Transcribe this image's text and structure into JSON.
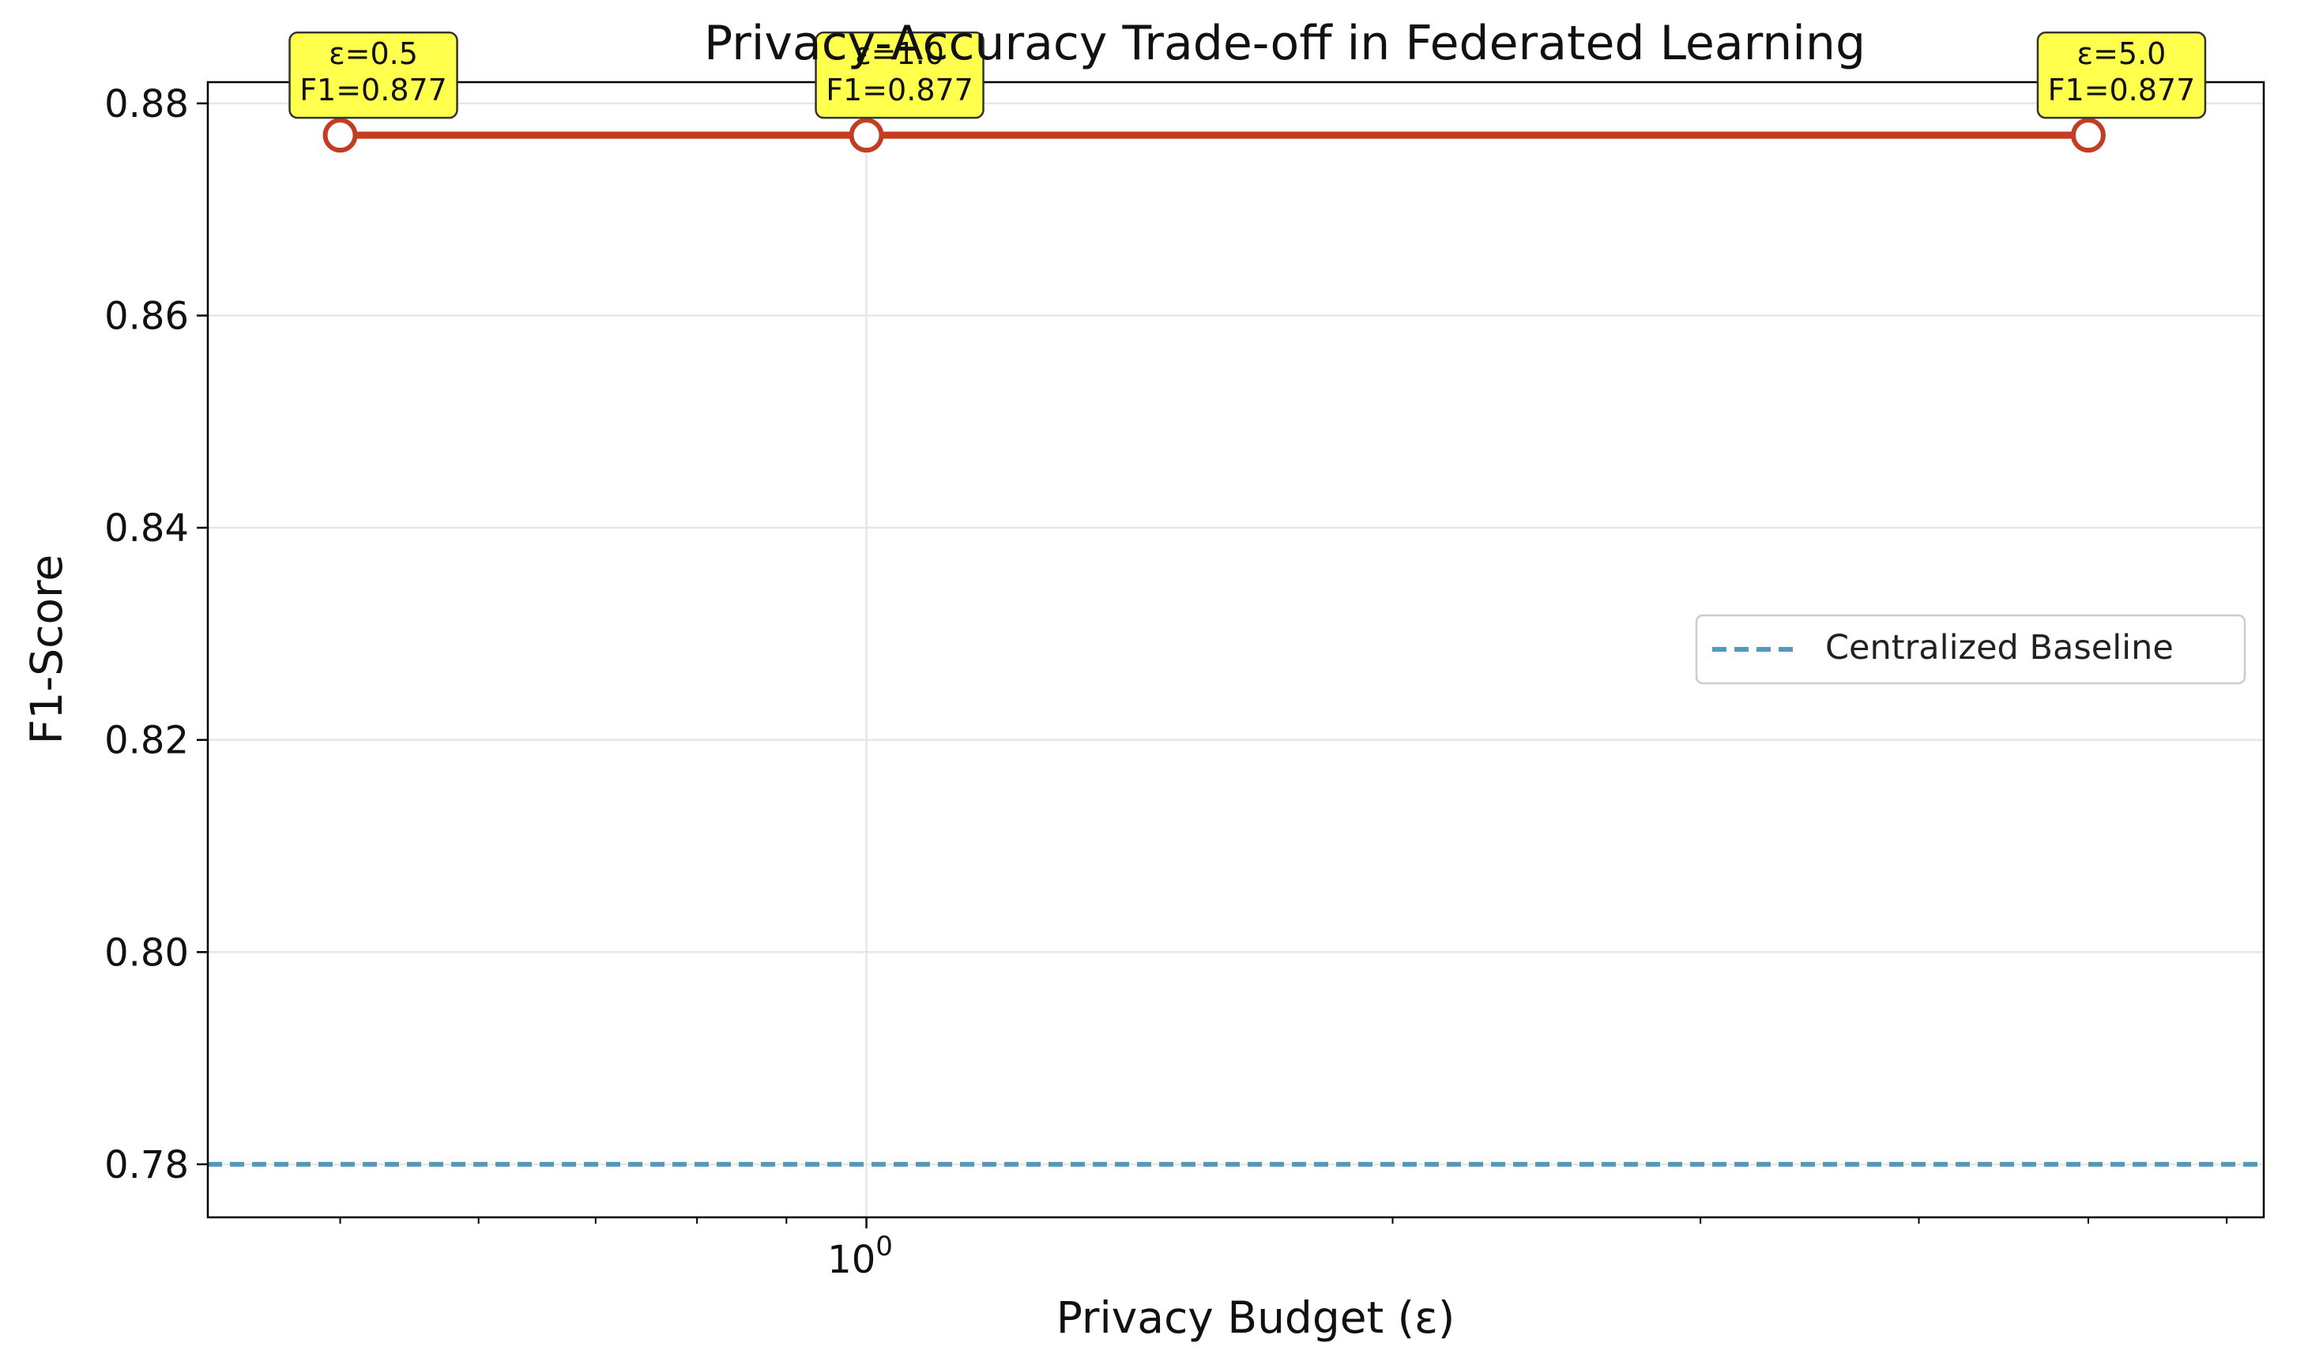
{
  "chart_data": {
    "type": "line",
    "title": "Privacy-Accuracy Trade-off in Federated Learning",
    "xlabel": "Privacy Budget (ε)",
    "ylabel": "F1-Score",
    "xscale": "log",
    "xlim": [
      0.42,
      6.3
    ],
    "ylim": [
      0.775,
      0.882
    ],
    "x_major_ticks": [
      {
        "value": 1,
        "label": "10",
        "exponent": "0"
      }
    ],
    "x_minor_ticks": [
      0.5,
      0.6,
      0.7,
      0.8,
      0.9,
      2,
      3,
      4,
      5,
      6
    ],
    "y_ticks": [
      0.78,
      0.8,
      0.82,
      0.84,
      0.86,
      0.88
    ],
    "y_tick_labels": [
      "0.78",
      "0.80",
      "0.82",
      "0.84",
      "0.86",
      "0.88"
    ],
    "grid": true,
    "legend_position": "center-right",
    "series": [
      {
        "x": [
          0.5,
          1.0,
          5.0
        ],
        "values": [
          0.877,
          0.877,
          0.877
        ],
        "color": "#c43d22",
        "style": "solid",
        "marker": "open-circle"
      }
    ],
    "baseline": {
      "name": "Centralized Baseline",
      "value": 0.78,
      "color": "#5499bd",
      "style": "dashed"
    },
    "annotations": [
      {
        "x": 0.5,
        "y": 0.877,
        "lines": [
          "ε=0.5",
          "F1=0.877"
        ]
      },
      {
        "x": 1.0,
        "y": 0.877,
        "lines": [
          "ε=1.0",
          "F1=0.877"
        ]
      },
      {
        "x": 5.0,
        "y": 0.877,
        "lines": [
          "ε=5.0",
          "F1=0.877"
        ]
      }
    ],
    "annotation_box_color": "#ffff4d"
  }
}
